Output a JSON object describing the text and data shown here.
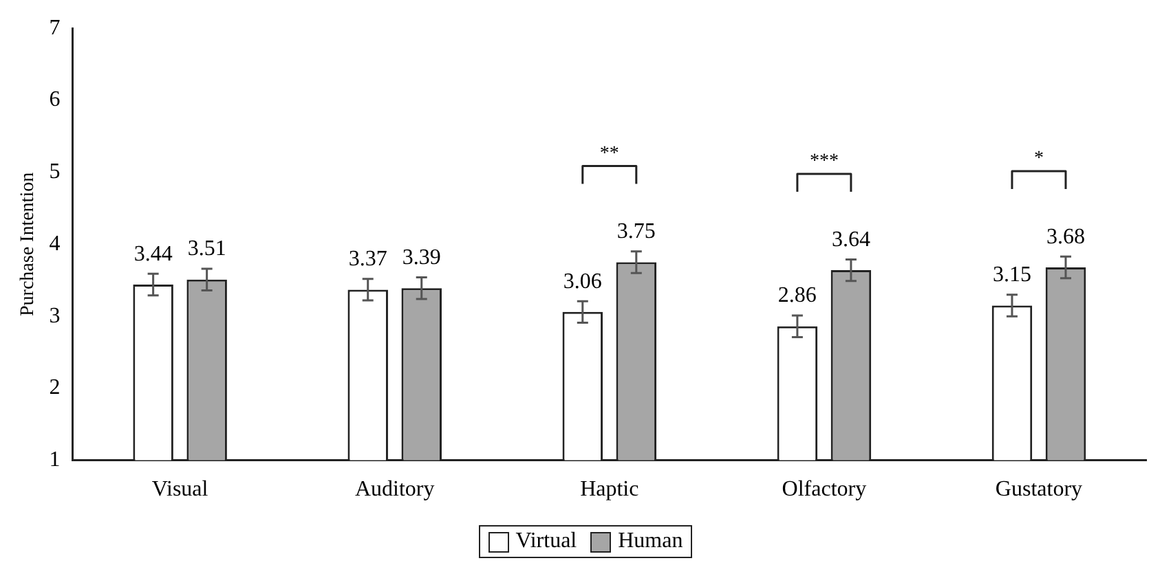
{
  "chart_data": {
    "type": "bar",
    "ylabel": "Purchase Intention",
    "categories": [
      "Visual",
      "Auditory",
      "Haptic",
      "Olfactory",
      "Gustatory"
    ],
    "series": [
      {
        "name": "Virtual",
        "color": "#ffffff",
        "values": [
          3.44,
          3.37,
          3.06,
          2.86,
          3.15
        ],
        "errors": [
          0.15,
          0.15,
          0.15,
          0.15,
          0.15
        ]
      },
      {
        "name": "Human",
        "color": "#a6a6a6",
        "values": [
          3.51,
          3.39,
          3.75,
          3.64,
          3.68
        ],
        "errors": [
          0.15,
          0.15,
          0.15,
          0.15,
          0.15
        ]
      }
    ],
    "ylim": [
      1,
      7
    ],
    "yticks": [
      1,
      2,
      3,
      4,
      5,
      6,
      7
    ],
    "grid": false,
    "legend": "bottom",
    "data_labels": true,
    "annotations": [
      "**",
      "***",
      "*"
    ]
  }
}
